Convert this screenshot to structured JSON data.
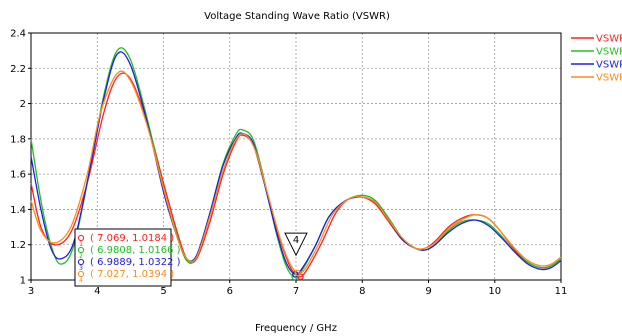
{
  "chart_data": {
    "type": "line",
    "title": "Voltage Standing Wave Ratio (VSWR)",
    "xlabel": "Frequency / GHz",
    "ylabel": "",
    "xlim": [
      3,
      11
    ],
    "ylim": [
      1,
      2.4
    ],
    "x_ticks": [
      "3",
      "4",
      "5",
      "6",
      "7",
      "8",
      "9",
      "10",
      "11"
    ],
    "y_ticks": [
      "1",
      "1.2",
      "1.4",
      "1.6",
      "1.8",
      "2",
      "2.2",
      "2.4"
    ],
    "grid": true,
    "legend_position": "right, outside plot (labels clipped)",
    "series": [
      {
        "name": "VSWR",
        "color": "#ff2020",
        "x": [
          3.0,
          3.15,
          3.35,
          3.6,
          3.85,
          4.1,
          4.3,
          4.5,
          4.75,
          5.0,
          5.2,
          5.35,
          5.5,
          5.7,
          5.9,
          6.1,
          6.2,
          6.35,
          6.5,
          6.7,
          6.85,
          6.95,
          7.07,
          7.2,
          7.4,
          7.6,
          7.8,
          8.0,
          8.2,
          8.4,
          8.6,
          8.8,
          8.95,
          9.1,
          9.3,
          9.5,
          9.7,
          9.9,
          10.1,
          10.3,
          10.5,
          10.7,
          10.85,
          11.0
        ],
        "y": [
          1.55,
          1.3,
          1.2,
          1.27,
          1.55,
          1.95,
          2.15,
          2.14,
          1.9,
          1.55,
          1.28,
          1.12,
          1.12,
          1.33,
          1.6,
          1.79,
          1.82,
          1.77,
          1.58,
          1.3,
          1.13,
          1.05,
          1.018,
          1.08,
          1.22,
          1.38,
          1.46,
          1.47,
          1.43,
          1.33,
          1.23,
          1.18,
          1.18,
          1.22,
          1.3,
          1.35,
          1.37,
          1.35,
          1.27,
          1.17,
          1.1,
          1.07,
          1.08,
          1.12
        ]
      },
      {
        "name": "VSWR",
        "color": "#20c020",
        "x": [
          3.0,
          3.15,
          3.3,
          3.45,
          3.65,
          3.9,
          4.1,
          4.3,
          4.5,
          4.75,
          5.0,
          5.2,
          5.35,
          5.5,
          5.7,
          5.9,
          6.1,
          6.2,
          6.35,
          6.5,
          6.7,
          6.85,
          6.98,
          7.1,
          7.3,
          7.5,
          7.75,
          8.0,
          8.2,
          8.4,
          8.6,
          8.8,
          8.95,
          9.1,
          9.3,
          9.5,
          9.7,
          9.9,
          10.1,
          10.3,
          10.5,
          10.7,
          10.85,
          11.0
        ],
        "y": [
          1.8,
          1.45,
          1.2,
          1.09,
          1.2,
          1.65,
          2.05,
          2.3,
          2.25,
          1.92,
          1.52,
          1.26,
          1.11,
          1.13,
          1.38,
          1.66,
          1.83,
          1.85,
          1.8,
          1.6,
          1.27,
          1.08,
          1.017,
          1.06,
          1.2,
          1.36,
          1.45,
          1.48,
          1.45,
          1.35,
          1.24,
          1.18,
          1.17,
          1.2,
          1.28,
          1.33,
          1.34,
          1.32,
          1.25,
          1.16,
          1.1,
          1.07,
          1.08,
          1.12
        ]
      },
      {
        "name": "VSWR",
        "color": "#2020e0",
        "x": [
          3.0,
          3.15,
          3.3,
          3.45,
          3.65,
          3.9,
          4.1,
          4.3,
          4.5,
          4.75,
          5.0,
          5.2,
          5.35,
          5.5,
          5.7,
          5.9,
          6.1,
          6.2,
          6.35,
          6.5,
          6.7,
          6.85,
          6.99,
          7.1,
          7.3,
          7.5,
          7.75,
          8.0,
          8.2,
          8.4,
          8.6,
          8.8,
          8.95,
          9.1,
          9.3,
          9.5,
          9.7,
          9.9,
          10.1,
          10.3,
          10.5,
          10.7,
          10.85,
          11.0
        ],
        "y": [
          1.7,
          1.4,
          1.18,
          1.12,
          1.22,
          1.65,
          2.03,
          2.28,
          2.22,
          1.9,
          1.5,
          1.25,
          1.12,
          1.14,
          1.38,
          1.65,
          1.81,
          1.83,
          1.78,
          1.58,
          1.28,
          1.1,
          1.032,
          1.07,
          1.2,
          1.36,
          1.45,
          1.47,
          1.44,
          1.34,
          1.23,
          1.18,
          1.17,
          1.2,
          1.27,
          1.32,
          1.34,
          1.31,
          1.24,
          1.16,
          1.09,
          1.06,
          1.07,
          1.11
        ]
      },
      {
        "name": "VSWR",
        "color": "#ff8c1a",
        "x": [
          3.0,
          3.15,
          3.35,
          3.6,
          3.85,
          4.05,
          4.3,
          4.5,
          4.75,
          5.0,
          5.2,
          5.35,
          5.5,
          5.7,
          5.9,
          6.1,
          6.25,
          6.4,
          6.55,
          6.75,
          6.9,
          7.03,
          7.15,
          7.35,
          7.55,
          7.8,
          8.0,
          8.2,
          8.4,
          8.6,
          8.8,
          8.95,
          9.1,
          9.3,
          9.5,
          9.7,
          9.9,
          10.1,
          10.3,
          10.5,
          10.7,
          10.85,
          11.0
        ],
        "y": [
          1.45,
          1.28,
          1.21,
          1.3,
          1.6,
          1.95,
          2.17,
          2.13,
          1.88,
          1.52,
          1.25,
          1.12,
          1.13,
          1.36,
          1.62,
          1.8,
          1.82,
          1.72,
          1.52,
          1.25,
          1.1,
          1.039,
          1.07,
          1.21,
          1.37,
          1.46,
          1.47,
          1.44,
          1.34,
          1.24,
          1.18,
          1.18,
          1.21,
          1.29,
          1.34,
          1.37,
          1.35,
          1.27,
          1.18,
          1.11,
          1.08,
          1.09,
          1.13
        ]
      }
    ],
    "markers": [
      {
        "id": "1",
        "x": 7.069,
        "y": 1.0184,
        "label": "( 7.069, 1.0184 )",
        "color": "#ff2020"
      },
      {
        "id": "2",
        "x": 6.9808,
        "y": 1.0166,
        "label": "( 6.9808, 1.0166 )",
        "color": "#20c020"
      },
      {
        "id": "3",
        "x": 6.9889,
        "y": 1.0322,
        "label": "( 6.9889, 1.0322 )",
        "color": "#2020e0"
      },
      {
        "id": "4",
        "x": 7.027,
        "y": 1.0394,
        "label": "( 7.027, 1.0394 )",
        "color": "#ff8c1a"
      }
    ],
    "marker_flag": "4"
  }
}
